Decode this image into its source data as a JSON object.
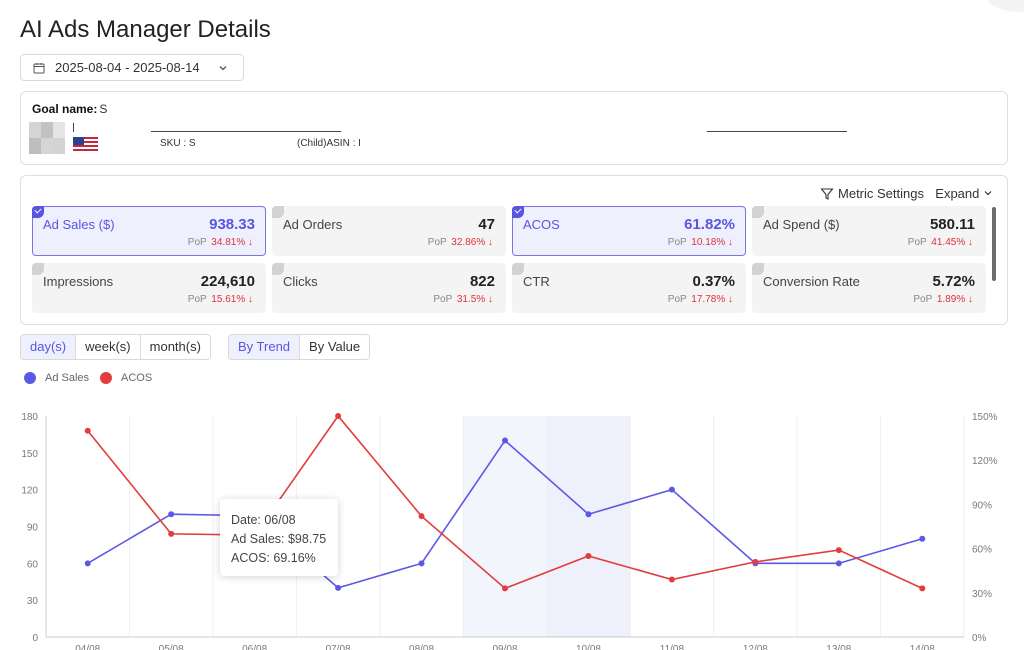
{
  "page": {
    "title": "AI Ads Manager Details"
  },
  "date_range": {
    "value": "2025-08-04 - 2025-08-14"
  },
  "goal": {
    "name_label": "Goal name:",
    "name_value": "S",
    "sku_label": "SKU :",
    "sku_value": "S",
    "asin_label": "(Child)ASIN :",
    "asin_value": "I"
  },
  "metrics_panel": {
    "settings_label": "Metric Settings",
    "expand_label": "Expand",
    "tiles": [
      {
        "name": "Ad Sales ($)",
        "value": "938.33",
        "pop_label": "PoP",
        "pop_value": "34.81% ↓",
        "active": true
      },
      {
        "name": "Ad Orders",
        "value": "47",
        "pop_label": "PoP",
        "pop_value": "32.86% ↓",
        "active": false
      },
      {
        "name": "ACOS",
        "value": "61.82%",
        "pop_label": "PoP",
        "pop_value": "10.18% ↓",
        "active": true
      },
      {
        "name": "Ad Spend ($)",
        "value": "580.11",
        "pop_label": "PoP",
        "pop_value": "41.45% ↓",
        "active": false
      },
      {
        "name": "Impressions",
        "value": "224,610",
        "pop_label": "PoP",
        "pop_value": "15.61% ↓",
        "active": false
      },
      {
        "name": "Clicks",
        "value": "822",
        "pop_label": "PoP",
        "pop_value": "31.5% ↓",
        "active": false
      },
      {
        "name": "CTR",
        "value": "0.37%",
        "pop_label": "PoP",
        "pop_value": "17.78% ↓",
        "active": false
      },
      {
        "name": "Conversion Rate",
        "value": "5.72%",
        "pop_label": "PoP",
        "pop_value": "1.89% ↓",
        "active": false
      }
    ]
  },
  "granularity": {
    "options": [
      "day(s)",
      "week(s)",
      "month(s)"
    ],
    "selected": "day(s)"
  },
  "view_mode": {
    "options": [
      "By Trend",
      "By Value"
    ],
    "selected": "By Trend"
  },
  "tooltip": {
    "date": "Date: 06/08",
    "sales": "Ad Sales: $98.75",
    "acos": "ACOS: 69.16%"
  },
  "colors": {
    "accent": "#5a55e0",
    "ad_sales": "#5b58e6",
    "acos": "#e23c3c",
    "down": "#e0303a"
  },
  "icons": {
    "date": "calendar-icon",
    "settings": "filter-icon",
    "expand": "chevron-down-icon",
    "select": "chevron-down-icon"
  },
  "chart_data": {
    "type": "line",
    "x": [
      "04/08",
      "05/08",
      "06/08",
      "07/08",
      "08/08",
      "09/08",
      "10/08",
      "11/08",
      "12/08",
      "13/08",
      "14/08"
    ],
    "series": [
      {
        "name": "Ad Sales",
        "axis": "left",
        "values": [
          60,
          100,
          98.75,
          40,
          60,
          160,
          100,
          120,
          60,
          60,
          80
        ]
      },
      {
        "name": "ACOS",
        "axis": "right",
        "values": [
          140,
          70,
          69.16,
          150,
          82,
          33,
          55,
          39,
          51,
          59,
          33
        ]
      }
    ],
    "y_left": {
      "ticks": [
        "0",
        "30",
        "60",
        "90",
        "120",
        "150",
        "180"
      ],
      "lim": [
        0,
        180
      ]
    },
    "y_right": {
      "ticks": [
        "0%",
        "30%",
        "60%",
        "90%",
        "120%",
        "150%"
      ],
      "lim": [
        0,
        150
      ]
    },
    "highlight_range": [
      "09/08",
      "10/08"
    ],
    "grid": true
  }
}
